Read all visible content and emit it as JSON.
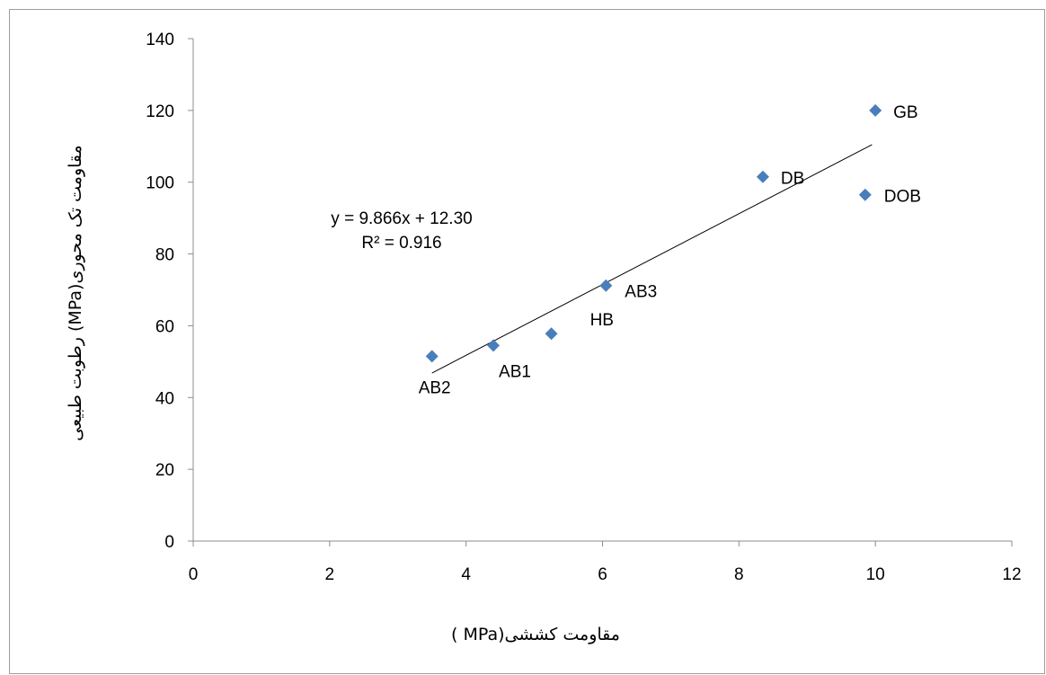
{
  "chart_data": {
    "type": "scatter",
    "title": "",
    "xlabel": "مقاومت کششی(MPa )",
    "ylabel": "مقاومت تک محوری(MPa) رطوبت طبیعی",
    "xlim": [
      0,
      12
    ],
    "ylim": [
      0,
      140
    ],
    "xticks": [
      "0",
      "2",
      "4",
      "6",
      "8",
      "10",
      "12"
    ],
    "yticks": [
      "0",
      "20",
      "40",
      "60",
      "80",
      "100",
      "120",
      "140"
    ],
    "marker_color": "#4a7ebb",
    "grid": false,
    "legend": "none",
    "points": [
      {
        "label": "AB2",
        "x": 3.5,
        "y": 51.5
      },
      {
        "label": "AB1",
        "x": 4.4,
        "y": 54.5
      },
      {
        "label": "HB",
        "x": 5.25,
        "y": 57.8
      },
      {
        "label": "AB3",
        "x": 6.05,
        "y": 71.2
      },
      {
        "label": "DB",
        "x": 8.35,
        "y": 101.5
      },
      {
        "label": "DOB",
        "x": 9.85,
        "y": 96.5
      },
      {
        "label": "GB",
        "x": 10.0,
        "y": 120.0
      }
    ],
    "trendline": {
      "slope": 9.866,
      "intercept": 12.3,
      "x_start": 3.5,
      "x_end": 9.95,
      "equation": "y = 9.866x + 12.30",
      "r_squared": "R² = 0.916"
    }
  }
}
